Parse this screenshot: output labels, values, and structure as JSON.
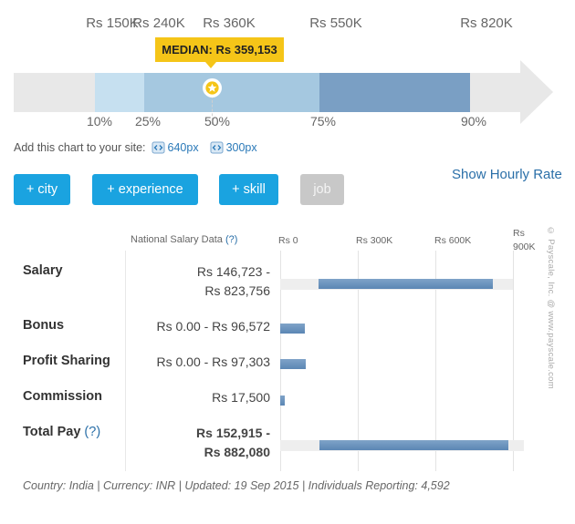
{
  "percentile_chart": {
    "top_labels": [
      "Rs 150K",
      "Rs 240K",
      "Rs 360K",
      "Rs 550K",
      "Rs 820K"
    ],
    "bottom_labels": [
      "10%",
      "25%",
      "50%",
      "75%",
      "90%"
    ],
    "median_label": "MEDIAN: Rs 359,153",
    "colors": {
      "track": "#e8e8e8",
      "band_10_25": "#c6e0f0",
      "band_25_50": "#a5c8e0",
      "band_50_75": "#a5c8e0",
      "band_75_90": "#7a9fc4",
      "median_badge": "#f5c518"
    }
  },
  "embed": {
    "prefix": "Add this chart to your site:",
    "link_640": "640px",
    "link_300": "300px"
  },
  "hourly_link": "Show Hourly Rate",
  "filters": {
    "city": "+ city",
    "experience": "+ experience",
    "skill": "+ skill",
    "job": "job"
  },
  "table": {
    "header": "National Salary Data",
    "header_help": "(?)",
    "axis": [
      "Rs 0",
      "Rs 300K",
      "Rs 600K",
      "Rs 900K"
    ],
    "axis_max_label_line1": "Rs",
    "axis_max_label_line2": "900K",
    "rows": [
      {
        "name": "Salary",
        "value_line1": "Rs 146,723 -",
        "value_line2": "Rs 823,756",
        "low": 146723,
        "high": 823756
      },
      {
        "name": "Bonus",
        "value_line1": "Rs 0.00 - Rs 96,572",
        "low": 0,
        "high": 96572
      },
      {
        "name": "Profit Sharing",
        "value_line1": "Rs 0.00 - Rs 97,303",
        "low": 0,
        "high": 97303
      },
      {
        "name": "Commission",
        "value_line1": "Rs 17,500",
        "low": 0,
        "high": 17500
      },
      {
        "name": "Total Pay",
        "name_help": "(?)",
        "value_line1": "Rs 152,915 -",
        "value_line2": "Rs 882,080",
        "low": 152915,
        "high": 882080
      }
    ]
  },
  "copyright": "© Payscale, Inc. @ www.payscale.com",
  "footer": "Country: India | Currency: INR | Updated: 19 Sep 2015 | Individuals Reporting: 4,592"
}
